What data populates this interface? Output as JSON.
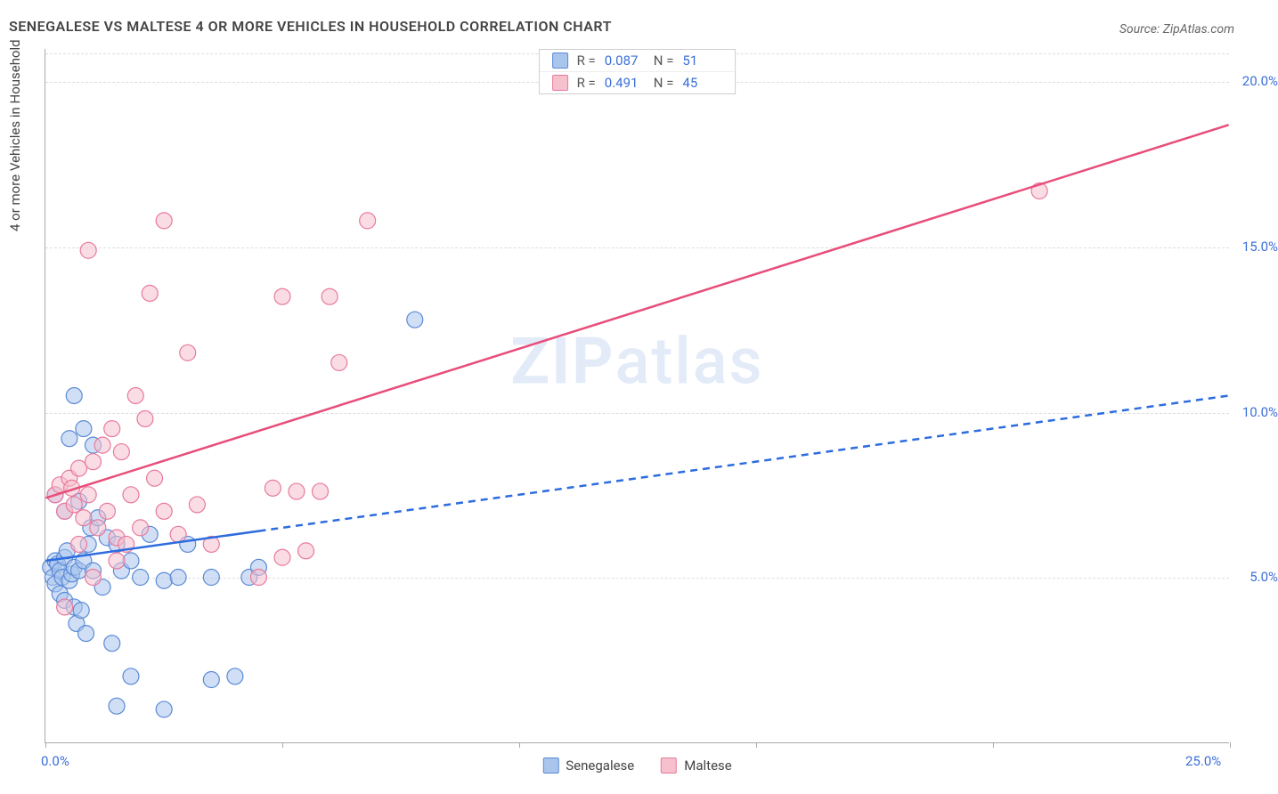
{
  "title": "SENEGALESE VS MALTESE 4 OR MORE VEHICLES IN HOUSEHOLD CORRELATION CHART",
  "source_label": "Source: ",
  "source_name": "ZipAtlas.com",
  "y_axis_label": "4 or more Vehicles in Household",
  "watermark_zip": "ZIP",
  "watermark_atlas": "atlas",
  "chart": {
    "type": "scatter",
    "xlim": [
      0,
      25
    ],
    "ylim": [
      0,
      21
    ],
    "x_ticks": [
      0,
      5,
      10,
      15,
      20,
      25
    ],
    "x_tick_labels": [
      "0.0%",
      null,
      null,
      null,
      null,
      "25.0%"
    ],
    "y_ticks": [
      5,
      10,
      15,
      20
    ],
    "y_tick_labels": [
      "5.0%",
      "10.0%",
      "15.0%",
      "20.0%"
    ],
    "grid_color": "#dddddd",
    "axis_color": "#aaaaaa",
    "background": "#ffffff",
    "marker_radius": 9,
    "marker_opacity": 0.55,
    "line_width": 2.5,
    "series": [
      {
        "name": "Senegalese",
        "color_fill": "#a9c5ec",
        "color_stroke": "#5b8ad6",
        "line_color": "#2d6cdf",
        "r_value": "0.087",
        "n_value": "51",
        "points": [
          [
            0.1,
            5.3
          ],
          [
            0.15,
            5.0
          ],
          [
            0.2,
            4.8
          ],
          [
            0.2,
            5.5
          ],
          [
            0.25,
            5.4
          ],
          [
            0.3,
            5.2
          ],
          [
            0.3,
            4.5
          ],
          [
            0.35,
            5.0
          ],
          [
            0.4,
            5.6
          ],
          [
            0.4,
            4.3
          ],
          [
            0.45,
            5.8
          ],
          [
            0.5,
            4.9
          ],
          [
            0.55,
            5.1
          ],
          [
            0.6,
            5.3
          ],
          [
            0.6,
            4.1
          ],
          [
            0.65,
            3.6
          ],
          [
            0.7,
            5.2
          ],
          [
            0.75,
            4.0
          ],
          [
            0.8,
            5.5
          ],
          [
            0.85,
            3.3
          ],
          [
            0.9,
            6.0
          ],
          [
            0.95,
            6.5
          ],
          [
            1.0,
            5.2
          ],
          [
            1.1,
            6.8
          ],
          [
            1.2,
            4.7
          ],
          [
            1.3,
            6.2
          ],
          [
            1.4,
            3.0
          ],
          [
            1.5,
            6.0
          ],
          [
            1.6,
            5.2
          ],
          [
            1.8,
            5.5
          ],
          [
            2.0,
            5.0
          ],
          [
            2.2,
            6.3
          ],
          [
            2.5,
            4.9
          ],
          [
            2.8,
            5.0
          ],
          [
            3.0,
            6.0
          ],
          [
            3.5,
            5.0
          ],
          [
            0.5,
            9.2
          ],
          [
            0.6,
            10.5
          ],
          [
            1.0,
            9.0
          ],
          [
            0.8,
            9.5
          ],
          [
            1.5,
            1.1
          ],
          [
            1.8,
            2.0
          ],
          [
            2.5,
            1.0
          ],
          [
            3.5,
            1.9
          ],
          [
            4.0,
            2.0
          ],
          [
            4.3,
            5.0
          ],
          [
            4.5,
            5.3
          ],
          [
            7.8,
            12.8
          ],
          [
            0.2,
            7.5
          ],
          [
            0.4,
            7.0
          ],
          [
            0.7,
            7.3
          ]
        ],
        "trend_solid": {
          "x1": 0,
          "y1": 5.5,
          "x2": 4.5,
          "y2": 6.4
        },
        "trend_dash": {
          "x1": 4.5,
          "y1": 6.4,
          "x2": 25,
          "y2": 10.5
        }
      },
      {
        "name": "Maltese",
        "color_fill": "#f6c0cd",
        "color_stroke": "#e87a9c",
        "line_color": "#e84d7a",
        "r_value": "0.491",
        "n_value": "45",
        "points": [
          [
            0.2,
            7.5
          ],
          [
            0.3,
            7.8
          ],
          [
            0.4,
            7.0
          ],
          [
            0.5,
            8.0
          ],
          [
            0.6,
            7.2
          ],
          [
            0.7,
            8.3
          ],
          [
            0.8,
            6.8
          ],
          [
            0.9,
            7.5
          ],
          [
            1.0,
            8.5
          ],
          [
            1.1,
            6.5
          ],
          [
            1.2,
            9.0
          ],
          [
            1.3,
            7.0
          ],
          [
            1.4,
            9.5
          ],
          [
            1.5,
            6.2
          ],
          [
            1.6,
            8.8
          ],
          [
            1.8,
            7.5
          ],
          [
            1.9,
            10.5
          ],
          [
            2.0,
            6.5
          ],
          [
            2.1,
            9.8
          ],
          [
            2.3,
            8.0
          ],
          [
            2.5,
            7.0
          ],
          [
            2.8,
            6.3
          ],
          [
            3.0,
            11.8
          ],
          [
            3.2,
            7.2
          ],
          [
            3.5,
            6.0
          ],
          [
            4.5,
            5.0
          ],
          [
            5.0,
            5.6
          ],
          [
            5.3,
            7.6
          ],
          [
            5.5,
            5.8
          ],
          [
            6.0,
            13.5
          ],
          [
            6.2,
            11.5
          ],
          [
            0.9,
            14.9
          ],
          [
            2.2,
            13.6
          ],
          [
            2.5,
            15.8
          ],
          [
            5.0,
            13.5
          ],
          [
            6.8,
            15.8
          ],
          [
            0.4,
            4.1
          ],
          [
            1.0,
            5.0
          ],
          [
            1.5,
            5.5
          ],
          [
            5.8,
            7.6
          ],
          [
            4.8,
            7.7
          ],
          [
            0.7,
            6.0
          ],
          [
            1.7,
            6.0
          ],
          [
            21.0,
            16.7
          ],
          [
            0.55,
            7.7
          ]
        ],
        "trend_solid": {
          "x1": 0,
          "y1": 7.4,
          "x2": 25,
          "y2": 18.7
        }
      }
    ]
  },
  "top_legend": {
    "r_label": "R =",
    "n_label": "N ="
  },
  "bottom_legend": {
    "items": [
      "Senegalese",
      "Maltese"
    ]
  }
}
